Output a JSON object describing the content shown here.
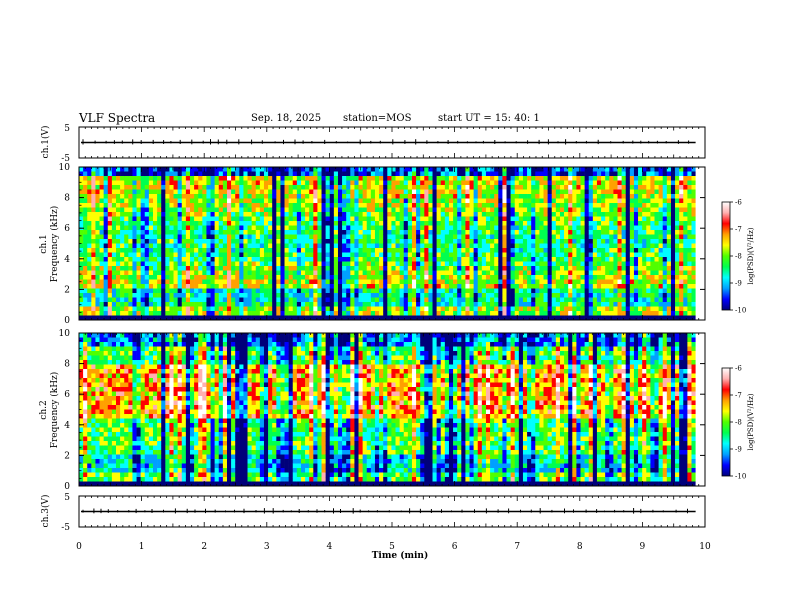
{
  "header": {
    "title": "VLF Spectra",
    "date": "Sep. 18, 2025",
    "station": "station=MOS",
    "start": "start  UT  =   15: 40: 1"
  },
  "chart_data": [
    {
      "type": "line",
      "name": "ch1-voltage",
      "ylabel": "ch.1(V)",
      "ylim": [
        -5,
        5
      ],
      "yticks": [
        "5",
        "-5"
      ],
      "baseline_value": 0,
      "x_range_min": [
        0,
        9.85
      ]
    },
    {
      "type": "heatmap",
      "name": "ch1-spectrogram",
      "ylabel": "ch.1\nFrequency (kHz)",
      "ylabel_lines": [
        "ch.1",
        "Frequency (kHz)"
      ],
      "ylim": [
        0,
        10
      ],
      "yticks": [
        "0",
        "2",
        "4",
        "6",
        "8",
        "10"
      ],
      "x_range_min": [
        0,
        9.85
      ],
      "colorbar": {
        "label": "log(PSD)(V²/Hz)",
        "range": [
          -10,
          -6
        ],
        "ticks": [
          "-6",
          "-7",
          "-8",
          "-9",
          "-10"
        ]
      }
    },
    {
      "type": "heatmap",
      "name": "ch2-spectrogram",
      "ylabel": "ch.2\nFrequency (kHz)",
      "ylabel_lines": [
        "ch.2",
        "Frequency (kHz)"
      ],
      "ylim": [
        0,
        10
      ],
      "yticks": [
        "0",
        "2",
        "4",
        "6",
        "8",
        "10"
      ],
      "x_range_min": [
        0,
        9.85
      ],
      "colorbar": {
        "label": "log(PSD)(V²/Hz)",
        "range": [
          -10,
          -6
        ],
        "ticks": [
          "-6",
          "-7",
          "-8",
          "-9",
          "-10"
        ]
      }
    },
    {
      "type": "line",
      "name": "ch3-voltage",
      "ylabel": "ch.3(V)",
      "ylim": [
        -5,
        5
      ],
      "yticks": [
        "5",
        "-5"
      ],
      "baseline_value": 0,
      "x_range_min": [
        0,
        9.85
      ],
      "xlabel": "Time  (min)",
      "xlim": [
        0,
        10
      ],
      "xticks": [
        "0",
        "1",
        "2",
        "3",
        "4",
        "5",
        "6",
        "7",
        "8",
        "9",
        "10"
      ]
    }
  ],
  "colors": {
    "colormap": [
      "#00007a",
      "#0000ff",
      "#00a0ff",
      "#00ffff",
      "#00ff50",
      "#50ff00",
      "#ffff00",
      "#ffa000",
      "#ff0000",
      "#ffb0b0",
      "#ffffff"
    ]
  }
}
